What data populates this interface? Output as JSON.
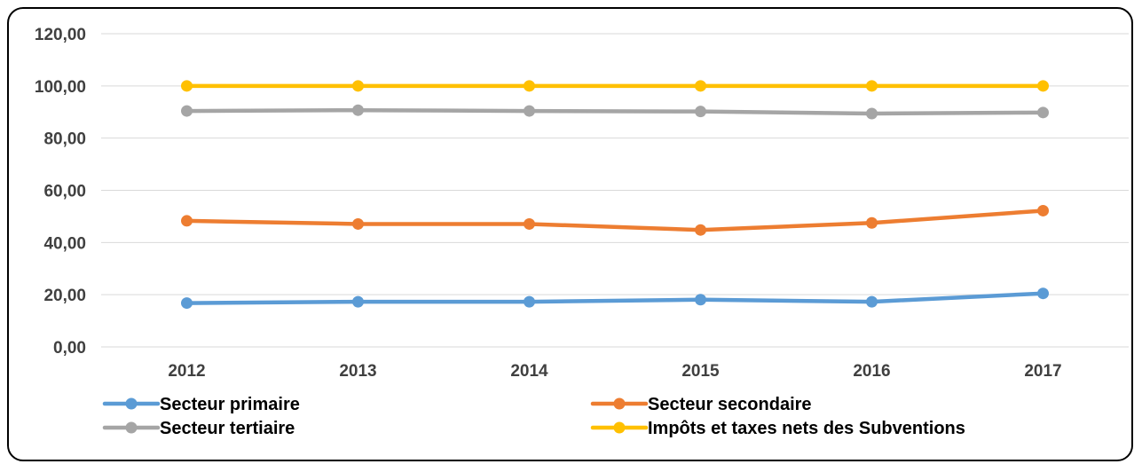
{
  "chart_data": {
    "type": "line",
    "title": "",
    "xlabel": "",
    "ylabel": "",
    "x": [
      "2012",
      "2013",
      "2014",
      "2015",
      "2016",
      "2017"
    ],
    "ylim": [
      0,
      120
    ],
    "yticks": [
      "0,00",
      "20,00",
      "40,00",
      "60,00",
      "80,00",
      "100,00",
      "120,00"
    ],
    "grid": true,
    "legend_position": "bottom",
    "series": [
      {
        "name": "Secteur primaire",
        "color": "#5B9BD5",
        "values": [
          16.8,
          17.3,
          17.3,
          18.1,
          17.3,
          20.5
        ]
      },
      {
        "name": "Secteur secondaire",
        "color": "#ED7D31",
        "values": [
          48.3,
          47.1,
          47.1,
          44.8,
          47.5,
          52.2
        ]
      },
      {
        "name": "Secteur tertiaire",
        "color": "#A5A5A5",
        "values": [
          90.4,
          90.7,
          90.4,
          90.2,
          89.4,
          89.8
        ]
      },
      {
        "name": "Impôts et taxes nets des Subventions",
        "color": "#FFC000",
        "values": [
          100,
          100,
          100,
          100,
          100,
          100
        ]
      }
    ]
  }
}
